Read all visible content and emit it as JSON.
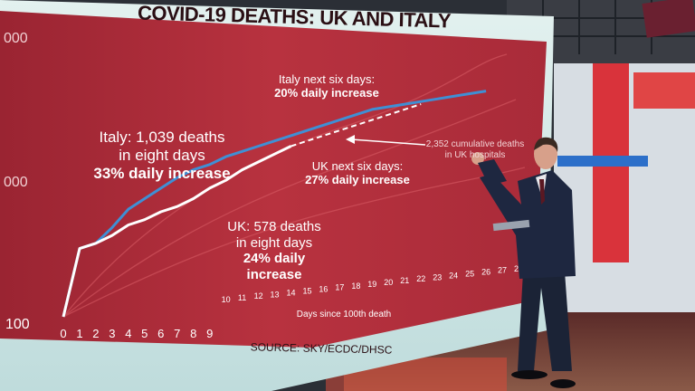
{
  "title": "COVID-19 DEATHS: UK AND ITALY",
  "source": "SOURCE: SKY/ECDC/DHSC",
  "annotations": {
    "italy_summary_1": "Italy: 1,039 deaths",
    "italy_summary_2": "in eight days",
    "italy_summary_3": "33% daily increase",
    "italy_next_1": "Italy next six days:",
    "italy_next_2": "20% daily increase",
    "uk_next_1": "UK next six days:",
    "uk_next_2": "27% daily increase",
    "uk_summary_1": "UK: 578 deaths",
    "uk_summary_2": "in eight days",
    "uk_summary_3": "24% daily increase",
    "uk_hospitals_1": "2,352 cumulative deaths",
    "uk_hospitals_2": "in UK hospitals"
  },
  "y_ticks": [
    "000",
    "000",
    "100"
  ],
  "colors": {
    "panel": "#b3303f",
    "panel_dark": "#8e2330",
    "frame": "#cfe6e6",
    "italy": "#3f8fd4",
    "uk": "#ffffff",
    "title_text": "#2a0f14"
  },
  "chart_data": {
    "type": "line",
    "xlabel": "Days since 100th death",
    "x_ticks": [
      0,
      1,
      2,
      3,
      4,
      5,
      6,
      7,
      8,
      9,
      10,
      11,
      12,
      13,
      14,
      15,
      16,
      17,
      18,
      19,
      20,
      21,
      22,
      23,
      24,
      25,
      26,
      27,
      28
    ],
    "xlim": [
      0,
      28
    ],
    "y_scale": "log",
    "grid": false,
    "series": [
      {
        "name": "Italy",
        "color": "#3f8fd4",
        "x": [
          0,
          1,
          2,
          3,
          4,
          5,
          6,
          7,
          8,
          9,
          10,
          11,
          12,
          13,
          14,
          15,
          16,
          17,
          18,
          19,
          20,
          21,
          22,
          23,
          24,
          25,
          26
        ],
        "y": [
          100,
          0.74,
          0.72,
          0.66,
          0.59,
          0.55,
          0.51,
          0.47,
          0.44,
          0.42,
          0.39,
          0.37,
          0.35,
          0.33,
          0.31,
          0.29,
          0.27,
          0.25,
          0.23,
          0.21,
          0.2,
          0.19,
          0.18,
          0.17,
          0.16,
          0.15,
          0.14
        ]
      },
      {
        "name": "UK",
        "color": "#ffffff",
        "x": [
          0,
          1,
          2,
          3,
          4,
          5,
          6,
          7,
          8,
          9,
          10,
          11,
          12,
          13,
          14
        ],
        "y": [
          100,
          0.74,
          0.72,
          0.69,
          0.65,
          0.63,
          0.6,
          0.58,
          0.55,
          0.51,
          0.48,
          0.44,
          0.41,
          0.38,
          0.35
        ]
      },
      {
        "name": "UK projection",
        "style": "dashed",
        "color": "#ffffff",
        "x": [
          14,
          16,
          18,
          20,
          22
        ],
        "y": [
          0.35,
          0.31,
          0.27,
          0.23,
          0.19
        ]
      }
    ]
  }
}
